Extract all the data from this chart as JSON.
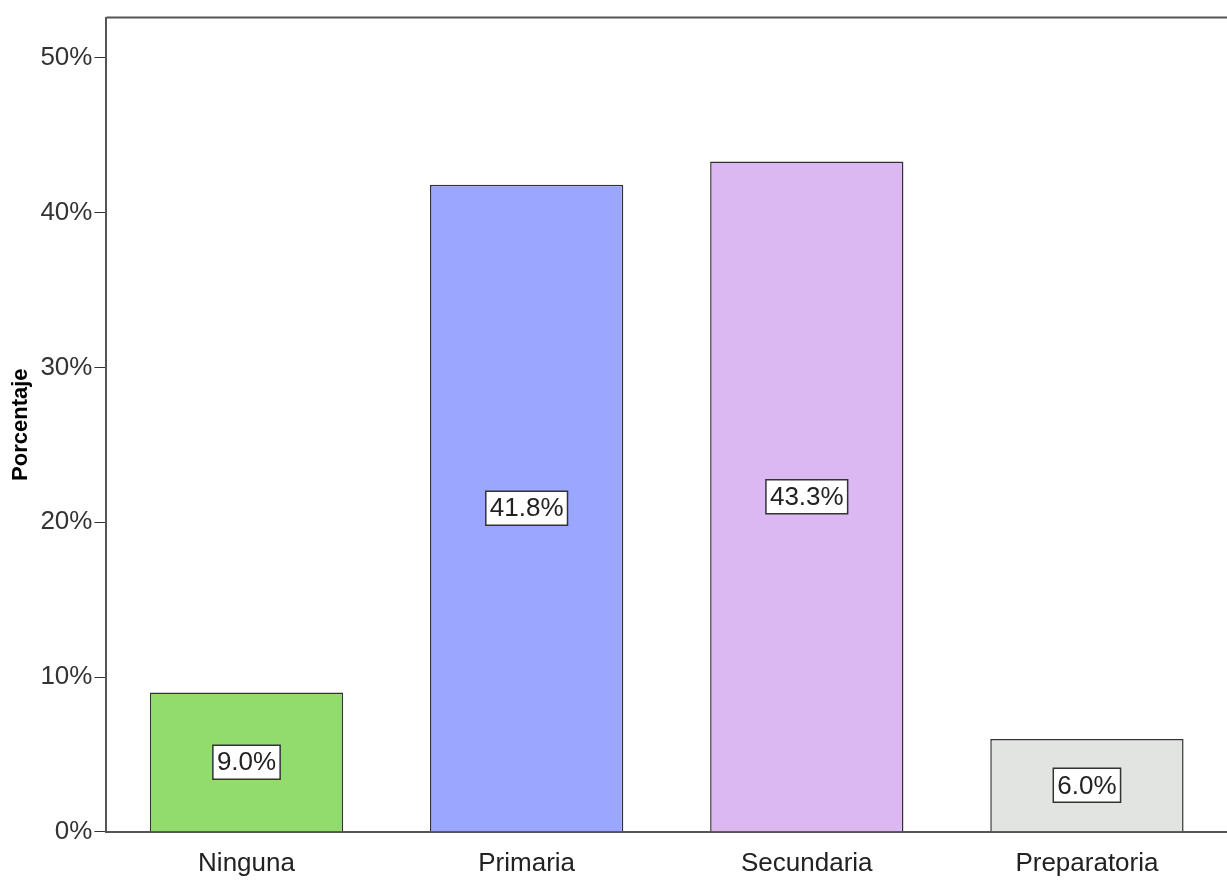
{
  "chart_data": {
    "type": "bar",
    "ylabel": "Porcentaje",
    "categories": [
      "Ninguna",
      "Primaria",
      "Secundaria",
      "Preparatoria"
    ],
    "values": [
      9.0,
      41.8,
      43.3,
      6.0
    ],
    "colors": [
      "#92dc6e",
      "#9ba6fe",
      "#dcb8f2",
      "#e2e4e1"
    ],
    "value_labels": [
      "9.0%",
      "41.8%",
      "43.3%",
      "6.0%"
    ],
    "ylim": [
      0,
      52.6
    ],
    "yticks": [
      {
        "value": 0,
        "label": "0%"
      },
      {
        "value": 10,
        "label": "10%"
      },
      {
        "value": 20,
        "label": "20%"
      },
      {
        "value": 30,
        "label": "30%"
      },
      {
        "value": 40,
        "label": "40%"
      },
      {
        "value": 50,
        "label": "50%"
      }
    ],
    "grid": false,
    "legend": false
  }
}
